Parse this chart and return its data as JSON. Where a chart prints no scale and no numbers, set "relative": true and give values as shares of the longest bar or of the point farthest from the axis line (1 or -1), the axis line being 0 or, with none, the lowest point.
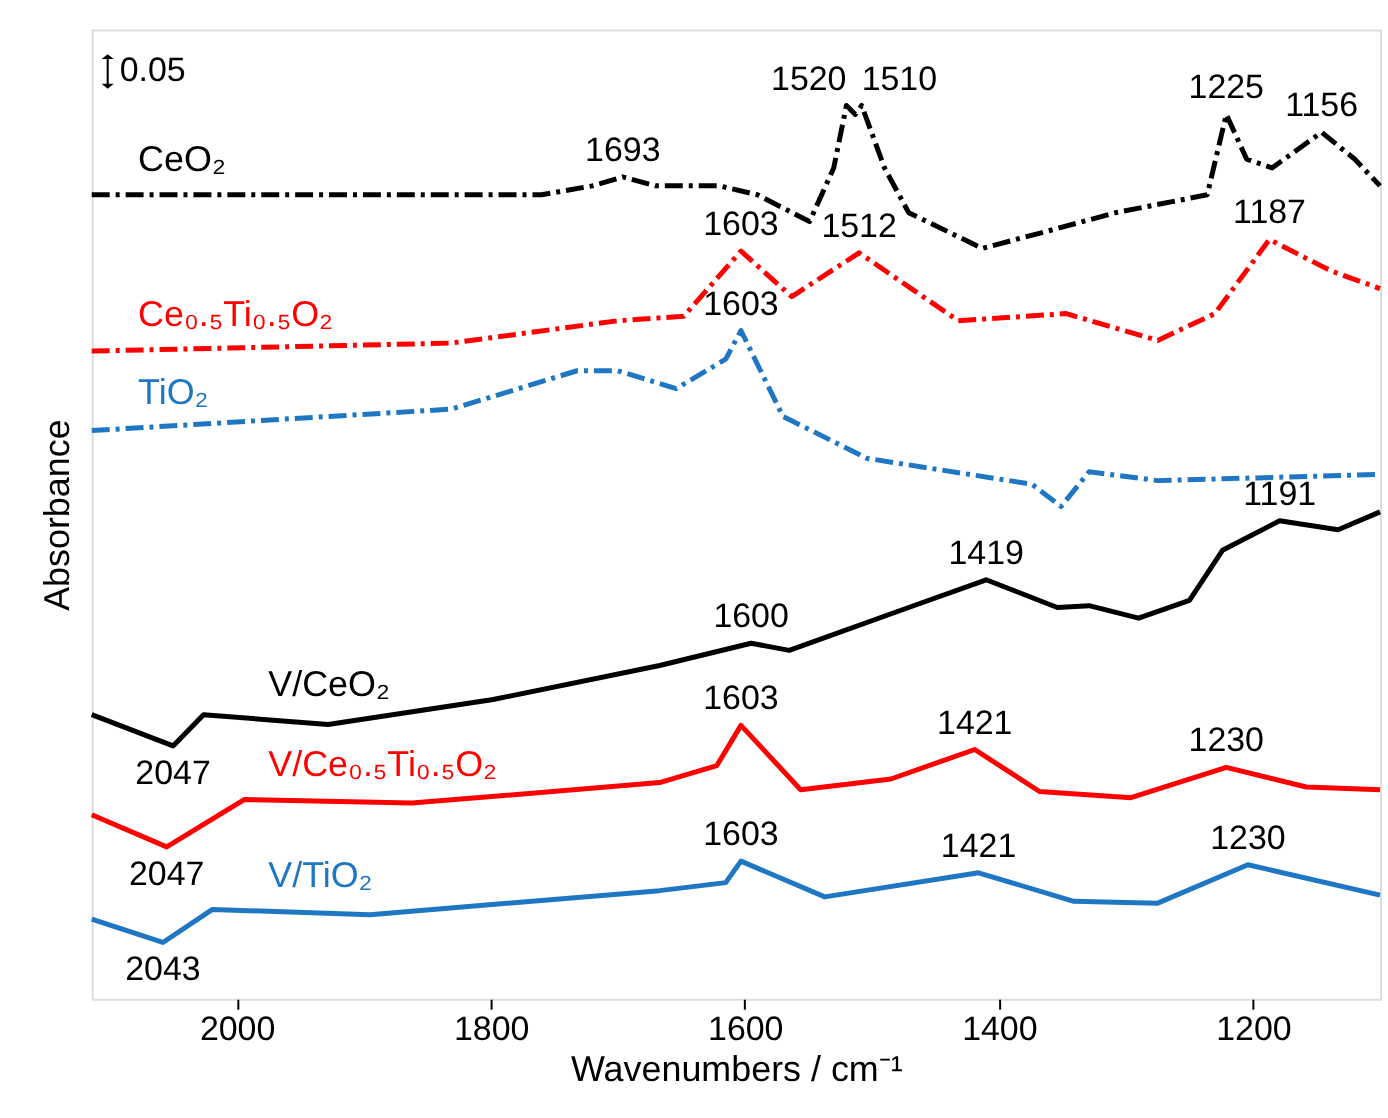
{
  "chart_data": {
    "type": "line",
    "relative": true,
    "xlabel": "Wavenumbers / cm⁻¹",
    "ylabel": "Absorbance",
    "xlim": [
      2114,
      1100
    ],
    "xticks": [
      2000,
      1800,
      1600,
      1400,
      1200
    ],
    "tick_labels": "x",
    "grid": false,
    "marker": "none",
    "series": [
      {
        "name": "CeO₂",
        "color": "#000000",
        "line_style": "dashed",
        "x": [
          2114,
          1900,
          1760,
          1720,
          1696,
          1670,
          1620,
          1590,
          1549,
          1530,
          1520,
          1513,
          1508,
          1490,
          1471,
          1413,
          1360,
          1308,
          1236,
          1221,
          1205,
          1185,
          1146,
          1120,
          1100
        ],
        "values": [
          0.9,
          0.9,
          0.9,
          0.91,
          0.92,
          0.91,
          0.91,
          0.9,
          0.87,
          0.93,
          1.0,
          0.99,
          1.0,
          0.93,
          0.88,
          0.84,
          0.86,
          0.88,
          0.9,
          0.99,
          0.94,
          0.93,
          0.97,
          0.94,
          0.91
        ]
      },
      {
        "name": "Ce₀.₅Ti₀.₅O₂",
        "color": "#ff0000",
        "line_style": "dashed",
        "x": [
          2114,
          1831,
          1700,
          1648,
          1603,
          1563,
          1510,
          1432,
          1347,
          1275,
          1230,
          1187,
          1139,
          1100
        ],
        "values": [
          0.725,
          0.734,
          0.759,
          0.764,
          0.837,
          0.786,
          0.835,
          0.759,
          0.767,
          0.737,
          0.767,
          0.85,
          0.815,
          0.795
        ]
      },
      {
        "name": "TiO₂",
        "color": "#1f77c4",
        "line_style": "dashed",
        "x": [
          2114,
          1831,
          1732,
          1700,
          1654,
          1615,
          1603,
          1570,
          1504,
          1374,
          1351,
          1329,
          1275,
          1100
        ],
        "values": [
          0.636,
          0.66,
          0.703,
          0.703,
          0.683,
          0.716,
          0.748,
          0.652,
          0.605,
          0.576,
          0.551,
          0.59,
          0.58,
          0.587
        ]
      },
      {
        "name": "V/CeO₂",
        "color": "#000000",
        "line_style": "solid",
        "x": [
          2114,
          2050,
          2026,
          1928,
          1798,
          1667,
          1595,
          1565,
          1471,
          1410,
          1354,
          1329,
          1290,
          1250,
          1224,
          1179,
          1133,
          1100
        ],
        "values": [
          0.318,
          0.283,
          0.318,
          0.307,
          0.335,
          0.373,
          0.398,
          0.39,
          0.438,
          0.469,
          0.438,
          0.44,
          0.426,
          0.446,
          0.502,
          0.535,
          0.525,
          0.545
        ]
      },
      {
        "name": "V/Ce₀.₅Ti₀.₅O₂",
        "color": "#ff0000",
        "line_style": "solid",
        "x": [
          2114,
          2055,
          1994,
          1862,
          1667,
          1622,
          1603,
          1556,
          1485,
          1419,
          1368,
          1296,
          1221,
          1158,
          1100
        ],
        "values": [
          0.206,
          0.17,
          0.223,
          0.219,
          0.242,
          0.261,
          0.306,
          0.234,
          0.246,
          0.279,
          0.232,
          0.225,
          0.259,
          0.237,
          0.234
        ]
      },
      {
        "name": "V/TiO₂",
        "color": "#1f77c4",
        "line_style": "solid",
        "x": [
          2114,
          2058,
          2019,
          1895,
          1667,
          1615,
          1603,
          1537,
          1416,
          1341,
          1275,
          1204,
          1100
        ],
        "values": [
          0.089,
          0.063,
          0.1,
          0.094,
          0.121,
          0.13,
          0.154,
          0.114,
          0.141,
          0.109,
          0.107,
          0.15,
          0.116
        ]
      }
    ],
    "annotations": [
      "0.05",
      {
        "text": "1693",
        "x": 1696,
        "y": 0.92
      },
      {
        "text": "1520",
        "x": 1520,
        "y": 1.0
      },
      {
        "text": "1510",
        "x": 1508,
        "y": 1.0
      },
      {
        "text": "1225",
        "x": 1221,
        "y": 0.99
      },
      {
        "text": "1156",
        "x": 1146,
        "y": 0.97
      },
      {
        "text": "1603",
        "x": 1603,
        "y": 0.837
      },
      {
        "text": "1512",
        "x": 1510,
        "y": 0.835
      },
      {
        "text": "1187",
        "x": 1187,
        "y": 0.85
      },
      {
        "text": "1603",
        "x": 1603,
        "y": 0.748
      },
      {
        "text": "2047",
        "x": 2050,
        "y": 0.283
      },
      {
        "text": "1600",
        "x": 1595,
        "y": 0.398
      },
      {
        "text": "1419",
        "x": 1410,
        "y": 0.469
      },
      {
        "text": "1191",
        "x": 1179,
        "y": 0.535
      },
      {
        "text": "2047",
        "x": 2055,
        "y": 0.17
      },
      {
        "text": "1603",
        "x": 1603,
        "y": 0.306
      },
      {
        "text": "1421",
        "x": 1419,
        "y": 0.279
      },
      {
        "text": "1230",
        "x": 1221,
        "y": 0.259
      },
      {
        "text": "2043",
        "x": 2058,
        "y": 0.063
      },
      {
        "text": "1603",
        "x": 1603,
        "y": 0.154
      },
      {
        "text": "1421",
        "x": 1416,
        "y": 0.141
      },
      {
        "text": "1230",
        "x": 1204,
        "y": 0.15
      }
    ]
  }
}
